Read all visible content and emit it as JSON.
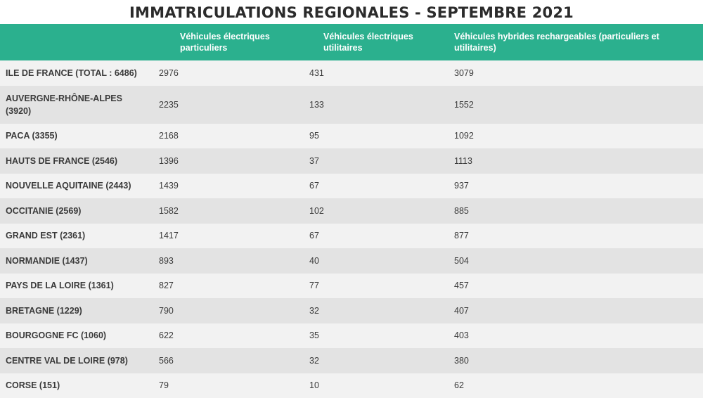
{
  "chart_data": {
    "type": "table",
    "title": "IMMATRICULATIONS REGIONALES - SEPTEMBRE 2021",
    "columns": [
      "",
      "Véhicules électriques particuliers",
      "Véhicules électriques utilitaires",
      "Véhicules hybrides rechargeables (particuliers et utilitaires)"
    ],
    "rows": [
      {
        "region": "ILE DE FRANCE (TOTAL : 6486)",
        "ve_particuliers": 2976,
        "ve_utilitaires": 431,
        "hybrides": 3079
      },
      {
        "region": "AUVERGNE-RHÔNE-ALPES (3920)",
        "ve_particuliers": 2235,
        "ve_utilitaires": 133,
        "hybrides": 1552
      },
      {
        "region": "PACA (3355)",
        "ve_particuliers": 2168,
        "ve_utilitaires": 95,
        "hybrides": 1092
      },
      {
        "region": "HAUTS DE FRANCE (2546)",
        "ve_particuliers": 1396,
        "ve_utilitaires": 37,
        "hybrides": 1113
      },
      {
        "region": "NOUVELLE AQUITAINE (2443)",
        "ve_particuliers": 1439,
        "ve_utilitaires": 67,
        "hybrides": 937
      },
      {
        "region": "OCCITANIE (2569)",
        "ve_particuliers": 1582,
        "ve_utilitaires": 102,
        "hybrides": 885
      },
      {
        "region": "GRAND EST (2361)",
        "ve_particuliers": 1417,
        "ve_utilitaires": 67,
        "hybrides": 877
      },
      {
        "region": "NORMANDIE (1437)",
        "ve_particuliers": 893,
        "ve_utilitaires": 40,
        "hybrides": 504
      },
      {
        "region": "PAYS DE LA LOIRE (1361)",
        "ve_particuliers": 827,
        "ve_utilitaires": 77,
        "hybrides": 457
      },
      {
        "region": "BRETAGNE (1229)",
        "ve_particuliers": 790,
        "ve_utilitaires": 32,
        "hybrides": 407
      },
      {
        "region": "BOURGOGNE FC (1060)",
        "ve_particuliers": 622,
        "ve_utilitaires": 35,
        "hybrides": 403
      },
      {
        "region": "CENTRE VAL DE LOIRE (978)",
        "ve_particuliers": 566,
        "ve_utilitaires": 32,
        "hybrides": 380
      },
      {
        "region": "CORSE (151)",
        "ve_particuliers": 79,
        "ve_utilitaires": 10,
        "hybrides": 62
      }
    ]
  },
  "colors": {
    "header_bg": "#2bb08e",
    "header_text": "#ffffff",
    "row_light": "#f2f2f2",
    "row_dark": "#e3e3e3"
  }
}
